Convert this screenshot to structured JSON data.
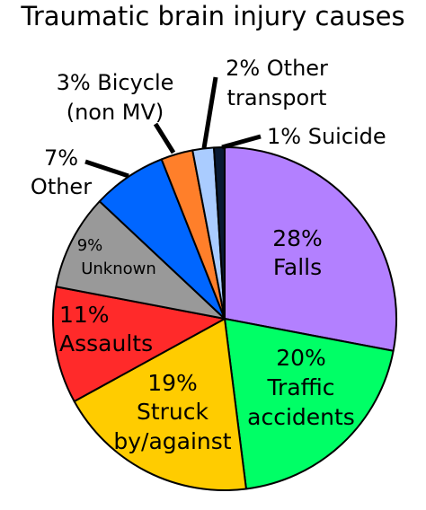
{
  "chart_data": {
    "type": "pie",
    "title": "Traumatic brain injury causes",
    "slices": [
      {
        "label": "Falls",
        "pct_text": "28%",
        "value": 28,
        "color": "#b380ff"
      },
      {
        "label": "Traffic accidents",
        "line1": "Traffic",
        "line2": "accidents",
        "pct_text": "20%",
        "value": 20,
        "color": "#00ff66"
      },
      {
        "label": "Struck by/against",
        "line1": "Struck",
        "line2": "by/against",
        "pct_text": "19%",
        "value": 19,
        "color": "#ffcc00"
      },
      {
        "label": "Assaults",
        "pct_text": "11%",
        "value": 11,
        "color": "#ff2a2a"
      },
      {
        "label": "Unknown",
        "pct_text": "9%",
        "value": 9,
        "color": "#999999"
      },
      {
        "label": "Other",
        "pct_text": "7%",
        "value": 7,
        "color": "#0066ff"
      },
      {
        "label": "Bicycle (non MV)",
        "line1": "3% Bicycle",
        "line2": "(non MV)",
        "pct_text": "3%",
        "value": 3,
        "color": "#ff7f2a"
      },
      {
        "label": "Other transport",
        "line1": "2% Other",
        "line2": "transport",
        "pct_text": "2%",
        "value": 2,
        "color": "#aaccff"
      },
      {
        "label": "Suicide",
        "line1": "1% Suicide",
        "pct_text": "1%",
        "value": 1,
        "color": "#0a1a33"
      }
    ]
  }
}
